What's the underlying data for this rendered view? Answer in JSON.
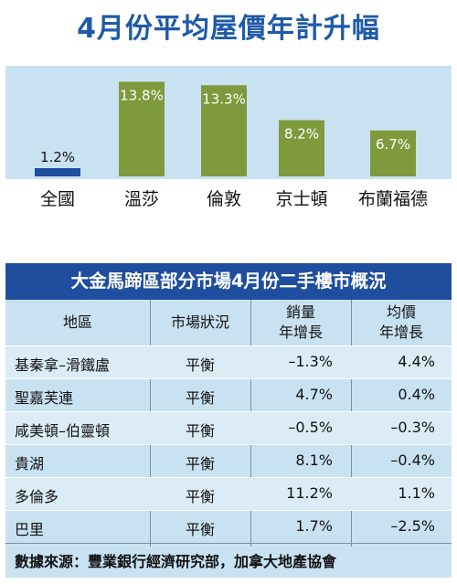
{
  "chart_data": {
    "type": "bar",
    "title": "4月份平均屋價年計升幅",
    "categories": [
      "全國",
      "溫莎",
      "倫敦",
      "京士頓",
      "布蘭福德"
    ],
    "values": [
      1.2,
      13.8,
      13.3,
      8.2,
      6.7
    ],
    "value_labels": [
      "1.2%",
      "13.8%",
      "13.3%",
      "8.2%",
      "6.7%"
    ],
    "unit": "%",
    "ylim": [
      0,
      15
    ],
    "grid": false,
    "colors": {
      "plot_background": "#c9e2f2",
      "first_bar": "#1f4e9e",
      "other_bars": "#7e9a3c"
    }
  },
  "table": {
    "title": "大金馬蹄區部分市場4月份二手樓市概況",
    "headers": {
      "region": "地區",
      "status": "市場狀況",
      "sales_1": "銷量",
      "sales_2": "年增長",
      "price_1": "均價",
      "price_2": "年增長"
    },
    "rows": [
      {
        "region": "基秦拿–滑鐵盧",
        "status": "平衡",
        "sales": "–1.3%",
        "price": "4.4%"
      },
      {
        "region": "聖嘉芙連",
        "status": "平衡",
        "sales": "4.7%",
        "price": "0.4%"
      },
      {
        "region": "咸美頓–伯靈頓",
        "status": "平衡",
        "sales": "–0.5%",
        "price": "–0.3%"
      },
      {
        "region": "貴湖",
        "status": "平衡",
        "sales": "8.1%",
        "price": "–0.4%"
      },
      {
        "region": "多倫多",
        "status": "平衡",
        "sales": "11.2%",
        "price": "1.1%"
      },
      {
        "region": "巴里",
        "status": "平衡",
        "sales": "1.7%",
        "price": "–2.5%"
      }
    ],
    "source": "數據來源：豐業銀行經濟研究部，加拿大地產協會",
    "colors": {
      "title_bar": "#1f4e9e",
      "panel": "#c9e2f2",
      "band": "#dbecf7"
    }
  }
}
